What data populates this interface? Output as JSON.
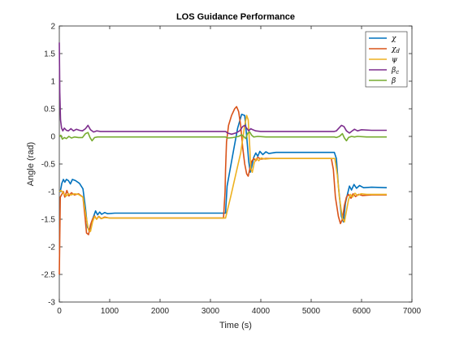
{
  "chart_data": {
    "type": "line",
    "title": "LOS Guidance Performance",
    "xlabel": "Time (s)",
    "ylabel": "Angle (rad)",
    "xlim": [
      0,
      7000
    ],
    "ylim": [
      -3,
      2
    ],
    "xticks": [
      0,
      1000,
      2000,
      3000,
      4000,
      5000,
      6000,
      7000
    ],
    "yticks": [
      2,
      1.5,
      1,
      0.5,
      0,
      -0.5,
      -1,
      -1.5,
      -2,
      -2.5,
      -3
    ],
    "xtick_labels": [
      "0",
      "1000",
      "2000",
      "3000",
      "4000",
      "5000",
      "6000",
      "7000"
    ],
    "ytick_labels": [
      "2",
      "1.5",
      "1",
      "0.5",
      "0",
      "-0.5",
      "-1",
      "-1.5",
      "-2",
      "-2.5",
      "-3"
    ],
    "grid": false,
    "legend_position": "top-right",
    "series": [
      {
        "name": "χ",
        "color": "#0072BD",
        "points": [
          [
            0,
            -1.0
          ],
          [
            20,
            -1.0
          ],
          [
            50,
            -0.85
          ],
          [
            80,
            -0.78
          ],
          [
            110,
            -0.83
          ],
          [
            140,
            -0.78
          ],
          [
            180,
            -0.8
          ],
          [
            220,
            -0.86
          ],
          [
            260,
            -0.78
          ],
          [
            320,
            -0.8
          ],
          [
            400,
            -0.85
          ],
          [
            470,
            -0.95
          ],
          [
            520,
            -1.3
          ],
          [
            560,
            -1.65
          ],
          [
            600,
            -1.7
          ],
          [
            640,
            -1.55
          ],
          [
            680,
            -1.45
          ],
          [
            720,
            -1.35
          ],
          [
            760,
            -1.42
          ],
          [
            800,
            -1.37
          ],
          [
            840,
            -1.41
          ],
          [
            900,
            -1.38
          ],
          [
            960,
            -1.4
          ],
          [
            1100,
            -1.39
          ],
          [
            2000,
            -1.39
          ],
          [
            3000,
            -1.39
          ],
          [
            3300,
            -1.39
          ],
          [
            3330,
            -0.9
          ],
          [
            3400,
            -0.55
          ],
          [
            3470,
            -0.2
          ],
          [
            3540,
            0.15
          ],
          [
            3620,
            0.4
          ],
          [
            3680,
            0.38
          ],
          [
            3720,
            0.0
          ],
          [
            3760,
            -0.45
          ],
          [
            3790,
            -0.65
          ],
          [
            3820,
            -0.55
          ],
          [
            3860,
            -0.38
          ],
          [
            3900,
            -0.3
          ],
          [
            3940,
            -0.36
          ],
          [
            3980,
            -0.27
          ],
          [
            4040,
            -0.33
          ],
          [
            4100,
            -0.28
          ],
          [
            4160,
            -0.31
          ],
          [
            4300,
            -0.29
          ],
          [
            5000,
            -0.29
          ],
          [
            5460,
            -0.29
          ],
          [
            5500,
            -0.4
          ],
          [
            5540,
            -0.9
          ],
          [
            5600,
            -1.45
          ],
          [
            5640,
            -1.55
          ],
          [
            5680,
            -1.2
          ],
          [
            5720,
            -1.05
          ],
          [
            5760,
            -0.9
          ],
          [
            5800,
            -0.97
          ],
          [
            5850,
            -0.87
          ],
          [
            5900,
            -0.94
          ],
          [
            5960,
            -0.89
          ],
          [
            6040,
            -0.93
          ],
          [
            6200,
            -0.92
          ],
          [
            6500,
            -0.93
          ]
        ]
      },
      {
        "name": "χd",
        "color": "#D95319",
        "points": [
          [
            0,
            -2.5
          ],
          [
            10,
            -1.8
          ],
          [
            20,
            -1.1
          ],
          [
            50,
            -1.05
          ],
          [
            80,
            -1.0
          ],
          [
            110,
            -1.1
          ],
          [
            150,
            -0.98
          ],
          [
            190,
            -1.08
          ],
          [
            240,
            -1.02
          ],
          [
            300,
            -1.06
          ],
          [
            380,
            -1.04
          ],
          [
            470,
            -1.1
          ],
          [
            510,
            -1.45
          ],
          [
            540,
            -1.75
          ],
          [
            580,
            -1.78
          ],
          [
            620,
            -1.6
          ],
          [
            660,
            -1.5
          ],
          [
            700,
            -1.44
          ],
          [
            740,
            -1.5
          ],
          [
            780,
            -1.45
          ],
          [
            830,
            -1.49
          ],
          [
            900,
            -1.46
          ],
          [
            1000,
            -1.48
          ],
          [
            2000,
            -1.48
          ],
          [
            3000,
            -1.48
          ],
          [
            3260,
            -1.48
          ],
          [
            3290,
            -1.0
          ],
          [
            3300,
            -0.6
          ],
          [
            3320,
            -0.1
          ],
          [
            3360,
            0.2
          ],
          [
            3420,
            0.38
          ],
          [
            3480,
            0.5
          ],
          [
            3520,
            0.54
          ],
          [
            3560,
            0.45
          ],
          [
            3600,
            0.2
          ],
          [
            3640,
            -0.2
          ],
          [
            3680,
            -0.5
          ],
          [
            3720,
            -0.68
          ],
          [
            3750,
            -0.72
          ],
          [
            3790,
            -0.55
          ],
          [
            3820,
            -0.45
          ],
          [
            3860,
            -0.4
          ],
          [
            3900,
            -0.44
          ],
          [
            3940,
            -0.38
          ],
          [
            4000,
            -0.41
          ],
          [
            4100,
            -0.4
          ],
          [
            4500,
            -0.4
          ],
          [
            5400,
            -0.4
          ],
          [
            5440,
            -0.6
          ],
          [
            5480,
            -1.1
          ],
          [
            5540,
            -1.45
          ],
          [
            5580,
            -1.58
          ],
          [
            5620,
            -1.5
          ],
          [
            5660,
            -1.25
          ],
          [
            5700,
            -1.1
          ],
          [
            5740,
            -1.05
          ],
          [
            5790,
            -1.12
          ],
          [
            5830,
            -1.04
          ],
          [
            5880,
            -1.09
          ],
          [
            5940,
            -1.05
          ],
          [
            6020,
            -1.07
          ],
          [
            6200,
            -1.06
          ],
          [
            6500,
            -1.06
          ]
        ]
      },
      {
        "name": "ψ",
        "color": "#EDB120",
        "points": [
          [
            0,
            -1.0
          ],
          [
            30,
            -0.98
          ],
          [
            60,
            -1.0
          ],
          [
            100,
            -1.05
          ],
          [
            140,
            -1.08
          ],
          [
            180,
            -1.04
          ],
          [
            230,
            -1.06
          ],
          [
            300,
            -1.04
          ],
          [
            380,
            -1.05
          ],
          [
            470,
            -1.1
          ],
          [
            530,
            -1.45
          ],
          [
            580,
            -1.7
          ],
          [
            620,
            -1.72
          ],
          [
            660,
            -1.55
          ],
          [
            700,
            -1.45
          ],
          [
            740,
            -1.5
          ],
          [
            790,
            -1.45
          ],
          [
            840,
            -1.49
          ],
          [
            900,
            -1.47
          ],
          [
            1000,
            -1.48
          ],
          [
            2000,
            -1.48
          ],
          [
            3000,
            -1.48
          ],
          [
            3300,
            -1.48
          ],
          [
            3400,
            -1.1
          ],
          [
            3500,
            -0.7
          ],
          [
            3600,
            -0.3
          ],
          [
            3680,
            0.2
          ],
          [
            3720,
            0.38
          ],
          [
            3750,
            0.3
          ],
          [
            3780,
            -0.2
          ],
          [
            3800,
            -0.58
          ],
          [
            3830,
            -0.65
          ],
          [
            3870,
            -0.48
          ],
          [
            3910,
            -0.4
          ],
          [
            3960,
            -0.44
          ],
          [
            4010,
            -0.39
          ],
          [
            4080,
            -0.41
          ],
          [
            4200,
            -0.4
          ],
          [
            5000,
            -0.4
          ],
          [
            5470,
            -0.4
          ],
          [
            5520,
            -0.7
          ],
          [
            5560,
            -1.1
          ],
          [
            5620,
            -1.48
          ],
          [
            5660,
            -1.55
          ],
          [
            5700,
            -1.35
          ],
          [
            5740,
            -1.15
          ],
          [
            5780,
            -1.05
          ],
          [
            5820,
            -1.1
          ],
          [
            5870,
            -1.03
          ],
          [
            5920,
            -1.07
          ],
          [
            5990,
            -1.04
          ],
          [
            6100,
            -1.05
          ],
          [
            6500,
            -1.05
          ]
        ]
      },
      {
        "name": "βc",
        "color": "#7E2F8E",
        "points": [
          [
            0,
            1.7
          ],
          [
            10,
            0.8
          ],
          [
            25,
            0.3
          ],
          [
            45,
            0.15
          ],
          [
            70,
            0.1
          ],
          [
            100,
            0.15
          ],
          [
            140,
            0.11
          ],
          [
            180,
            0.1
          ],
          [
            230,
            0.14
          ],
          [
            280,
            0.1
          ],
          [
            340,
            0.13
          ],
          [
            400,
            0.11
          ],
          [
            460,
            0.1
          ],
          [
            520,
            0.14
          ],
          [
            570,
            0.2
          ],
          [
            620,
            0.12
          ],
          [
            680,
            0.08
          ],
          [
            740,
            0.1
          ],
          [
            820,
            0.09
          ],
          [
            1000,
            0.09
          ],
          [
            2000,
            0.09
          ],
          [
            3000,
            0.09
          ],
          [
            3300,
            0.09
          ],
          [
            3340,
            0.06
          ],
          [
            3420,
            0.04
          ],
          [
            3500,
            0.06
          ],
          [
            3580,
            0.1
          ],
          [
            3640,
            0.18
          ],
          [
            3680,
            0.2
          ],
          [
            3720,
            0.15
          ],
          [
            3760,
            0.1
          ],
          [
            3800,
            0.14
          ],
          [
            3840,
            0.12
          ],
          [
            3900,
            0.1
          ],
          [
            4000,
            0.09
          ],
          [
            4500,
            0.09
          ],
          [
            5460,
            0.09
          ],
          [
            5500,
            0.1
          ],
          [
            5550,
            0.15
          ],
          [
            5600,
            0.2
          ],
          [
            5650,
            0.18
          ],
          [
            5700,
            0.1
          ],
          [
            5760,
            0.06
          ],
          [
            5800,
            0.09
          ],
          [
            5860,
            0.13
          ],
          [
            5920,
            0.1
          ],
          [
            6000,
            0.12
          ],
          [
            6200,
            0.11
          ],
          [
            6500,
            0.11
          ]
        ]
      },
      {
        "name": "β",
        "color": "#77AC30",
        "points": [
          [
            0,
            0.0
          ],
          [
            30,
            0.02
          ],
          [
            60,
            -0.05
          ],
          [
            100,
            -0.02
          ],
          [
            140,
            -0.04
          ],
          [
            190,
            0.0
          ],
          [
            240,
            -0.03
          ],
          [
            300,
            -0.01
          ],
          [
            380,
            -0.02
          ],
          [
            460,
            -0.02
          ],
          [
            520,
            0.05
          ],
          [
            570,
            0.07
          ],
          [
            610,
            -0.02
          ],
          [
            650,
            -0.08
          ],
          [
            700,
            -0.02
          ],
          [
            760,
            -0.01
          ],
          [
            860,
            -0.01
          ],
          [
            1000,
            -0.01
          ],
          [
            2000,
            -0.01
          ],
          [
            3000,
            -0.01
          ],
          [
            3300,
            -0.01
          ],
          [
            3350,
            -0.03
          ],
          [
            3450,
            -0.02
          ],
          [
            3560,
            0.0
          ],
          [
            3620,
            0.03
          ],
          [
            3660,
            0.0
          ],
          [
            3700,
            -0.04
          ],
          [
            3740,
            0.06
          ],
          [
            3780,
            0.08
          ],
          [
            3820,
            0.02
          ],
          [
            3860,
            -0.01
          ],
          [
            3940,
            0.0
          ],
          [
            4100,
            -0.01
          ],
          [
            5000,
            -0.01
          ],
          [
            5460,
            -0.01
          ],
          [
            5500,
            -0.02
          ],
          [
            5560,
            0.0
          ],
          [
            5620,
            0.05
          ],
          [
            5660,
            -0.03
          ],
          [
            5700,
            -0.08
          ],
          [
            5740,
            -0.02
          ],
          [
            5800,
            0.0
          ],
          [
            5860,
            -0.01
          ],
          [
            5920,
            0.0
          ],
          [
            6100,
            -0.01
          ],
          [
            6500,
            -0.01
          ]
        ]
      }
    ]
  }
}
